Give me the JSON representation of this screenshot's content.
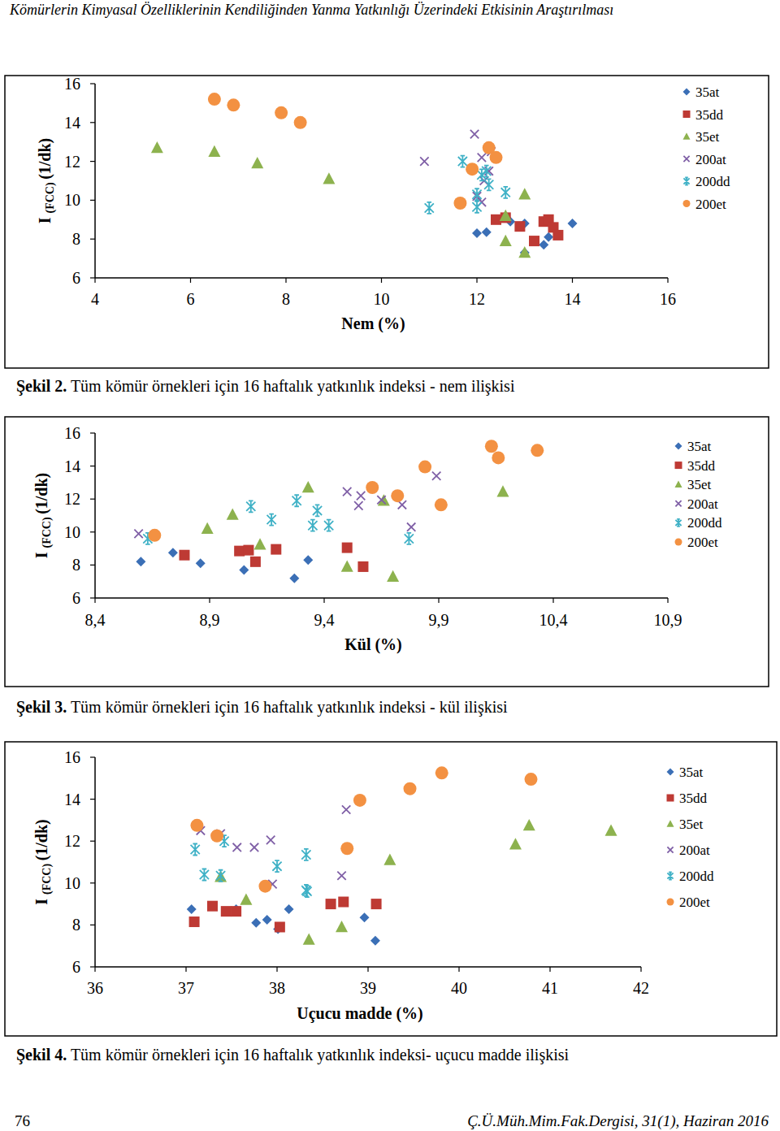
{
  "page": {
    "header": "Kömürlerin Kimyasal Özelliklerinin Kendiliğinden Yanma Yatkınlığı Üzerindeki Etkisinin Araştırılması",
    "page_number": "76",
    "journal": "Ç.Ü.Müh.Mim.Fak.Dergisi, 31(1), Haziran 2016"
  },
  "chart_data": [
    {
      "type": "scatter",
      "title": "Şekil 2. Tüm kömür örnekleri için 16 haftalık yatkınlık indeksi - nem ilişkisi",
      "xlabel": "Nem (%)",
      "ylabel": "I (FCC) (1/dk)",
      "xlim": [
        4,
        16
      ],
      "xticks": [
        4,
        6,
        8,
        10,
        12,
        14,
        16
      ],
      "ylim": [
        6,
        16
      ],
      "yticks": [
        6,
        8,
        10,
        12,
        14,
        16
      ],
      "grid": false,
      "legend": "right",
      "series": [
        {
          "name": "35at",
          "color": "#3b6fb6",
          "marker": "diamond",
          "x": [
            12.0,
            12.2,
            12.7,
            13.0,
            13.0,
            13.4,
            13.5,
            14.0
          ],
          "values": [
            8.3,
            8.35,
            8.9,
            8.8,
            7.3,
            7.7,
            8.1,
            8.8
          ]
        },
        {
          "name": "35dd",
          "color": "#be3a34",
          "marker": "square",
          "x": [
            12.4,
            12.6,
            12.9,
            13.2,
            13.4,
            13.5,
            13.6,
            13.7
          ],
          "values": [
            9.0,
            9.1,
            8.65,
            7.9,
            8.9,
            9.0,
            8.6,
            8.2
          ]
        },
        {
          "name": "35et",
          "color": "#8db24e",
          "marker": "triangle",
          "x": [
            5.3,
            6.5,
            7.4,
            8.9,
            12.6,
            12.6,
            13.0,
            13.0
          ],
          "values": [
            12.7,
            12.5,
            11.9,
            11.1,
            9.2,
            7.9,
            7.3,
            10.3
          ]
        },
        {
          "name": "200at",
          "color": "#7f5fa6",
          "marker": "x",
          "x": [
            10.9,
            11.95,
            12.1,
            12.3,
            12.1,
            12.25,
            12.15,
            12.0
          ],
          "values": [
            12.0,
            13.4,
            12.2,
            12.5,
            9.9,
            11.5,
            11.0,
            10.2
          ]
        },
        {
          "name": "200dd",
          "color": "#3fb1c6",
          "marker": "asterisk",
          "x": [
            11.0,
            11.7,
            12.0,
            12.0,
            12.1,
            12.2,
            12.25,
            12.6
          ],
          "values": [
            9.6,
            12.0,
            9.65,
            10.3,
            11.3,
            11.5,
            10.8,
            10.4
          ]
        },
        {
          "name": "200et",
          "color": "#f39142",
          "marker": "circle",
          "x": [
            6.5,
            6.9,
            7.9,
            8.3,
            11.65,
            11.9,
            12.25,
            12.4
          ],
          "values": [
            15.2,
            14.9,
            14.5,
            14.0,
            9.85,
            11.6,
            12.7,
            12.2
          ]
        }
      ]
    },
    {
      "type": "scatter",
      "title": "Şekil 3. Tüm kömür örnekleri için 16 haftalık yatkınlık indeksi - kül ilişkisi",
      "xlabel": "Kül (%)",
      "ylabel": "I (FCC) (1/dk)",
      "xlim": [
        8.4,
        10.9
      ],
      "xticks": [
        {
          "value": 8.4,
          "label": "8,4"
        },
        {
          "value": 8.9,
          "label": "8,9"
        },
        {
          "value": 9.4,
          "label": "9,4"
        },
        {
          "value": 9.9,
          "label": "9,9"
        },
        {
          "value": 10.4,
          "label": "10,4"
        },
        {
          "value": 10.9,
          "label": "10,9"
        }
      ],
      "ylim": [
        6,
        16
      ],
      "yticks": [
        6,
        8,
        10,
        12,
        14,
        16
      ],
      "grid": false,
      "legend": "right",
      "series": [
        {
          "name": "35at",
          "color": "#3b6fb6",
          "marker": "diamond",
          "x": [
            8.6,
            8.74,
            8.86,
            9.05,
            9.27,
            9.33
          ],
          "values": [
            8.2,
            8.75,
            8.1,
            7.7,
            7.2,
            8.3
          ]
        },
        {
          "name": "35dd",
          "color": "#be3a34",
          "marker": "square",
          "x": [
            8.79,
            9.03,
            9.07,
            9.1,
            9.19,
            9.5,
            9.57
          ],
          "values": [
            8.6,
            8.85,
            8.9,
            8.2,
            8.95,
            9.05,
            7.9
          ]
        },
        {
          "name": "35et",
          "color": "#8db24e",
          "marker": "triangle",
          "x": [
            8.89,
            9.0,
            9.12,
            9.33,
            9.5,
            9.66,
            9.7,
            10.18
          ],
          "values": [
            10.2,
            11.05,
            9.25,
            12.7,
            7.9,
            11.9,
            7.3,
            12.45
          ]
        },
        {
          "name": "200at",
          "color": "#7f5fa6",
          "marker": "x",
          "x": [
            8.59,
            9.5,
            9.55,
            9.56,
            9.65,
            9.74,
            9.78,
            9.89
          ],
          "values": [
            9.9,
            12.45,
            11.6,
            12.2,
            11.95,
            11.65,
            10.3,
            13.4
          ]
        },
        {
          "name": "200dd",
          "color": "#3fb1c6",
          "marker": "asterisk",
          "x": [
            8.63,
            9.08,
            9.17,
            9.28,
            9.35,
            9.37,
            9.42,
            9.77
          ],
          "values": [
            9.6,
            11.55,
            10.75,
            11.9,
            10.4,
            11.3,
            10.4,
            9.6
          ]
        },
        {
          "name": "200et",
          "color": "#f39142",
          "marker": "circle",
          "x": [
            8.66,
            9.61,
            9.72,
            9.84,
            9.91,
            10.13,
            10.16,
            10.33
          ],
          "values": [
            9.8,
            12.7,
            12.2,
            13.95,
            11.65,
            15.2,
            14.5,
            14.95
          ]
        }
      ]
    },
    {
      "type": "scatter",
      "title": "Şekil 4. Tüm kömür örnekleri için 16 haftalık yatkınlık indeksi- uçucu madde ilişkisi",
      "xlabel": "Uçucu madde (%)",
      "ylabel": "I (FCC) (1/dk)",
      "xlim": [
        36,
        42
      ],
      "xticks": [
        36,
        37,
        38,
        39,
        40,
        41,
        42
      ],
      "ylim": [
        6,
        16
      ],
      "yticks": [
        6,
        8,
        10,
        12,
        14,
        16
      ],
      "grid": false,
      "legend": "right",
      "series": [
        {
          "name": "35at",
          "color": "#3b6fb6",
          "marker": "diamond",
          "x": [
            37.06,
            37.55,
            37.77,
            37.89,
            38.01,
            38.13,
            38.96,
            39.08
          ],
          "values": [
            8.75,
            8.75,
            8.1,
            8.25,
            7.8,
            8.75,
            8.35,
            7.25
          ]
        },
        {
          "name": "35dd",
          "color": "#be3a34",
          "marker": "square",
          "x": [
            37.09,
            37.29,
            37.44,
            37.55,
            38.03,
            38.59,
            38.73,
            39.09
          ],
          "values": [
            8.15,
            8.9,
            8.65,
            8.65,
            7.9,
            9.0,
            9.1,
            9.0
          ]
        },
        {
          "name": "35et",
          "color": "#8db24e",
          "marker": "triangle",
          "x": [
            37.38,
            37.66,
            38.35,
            38.71,
            39.24,
            40.62,
            40.77,
            41.67
          ],
          "values": [
            10.3,
            9.2,
            7.3,
            7.9,
            11.1,
            11.85,
            12.75,
            12.5
          ]
        },
        {
          "name": "200at",
          "color": "#7f5fa6",
          "marker": "x",
          "x": [
            37.16,
            37.38,
            37.56,
            37.75,
            37.93,
            37.95,
            38.71,
            38.76
          ],
          "values": [
            12.5,
            12.35,
            11.7,
            11.7,
            12.05,
            9.95,
            10.35,
            13.5
          ]
        },
        {
          "name": "200dd",
          "color": "#3fb1c6",
          "marker": "asterisk",
          "x": [
            37.1,
            37.2,
            37.42,
            37.38,
            38.0,
            38.32,
            38.32,
            38.33
          ],
          "values": [
            11.6,
            10.4,
            12.0,
            10.35,
            10.8,
            11.35,
            9.65,
            9.6
          ]
        },
        {
          "name": "200et",
          "color": "#f39142",
          "marker": "circle",
          "x": [
            37.12,
            37.34,
            37.87,
            38.77,
            38.91,
            39.46,
            39.81,
            40.79
          ],
          "values": [
            12.75,
            12.25,
            9.85,
            11.65,
            13.95,
            14.5,
            15.25,
            14.95
          ]
        }
      ]
    }
  ]
}
